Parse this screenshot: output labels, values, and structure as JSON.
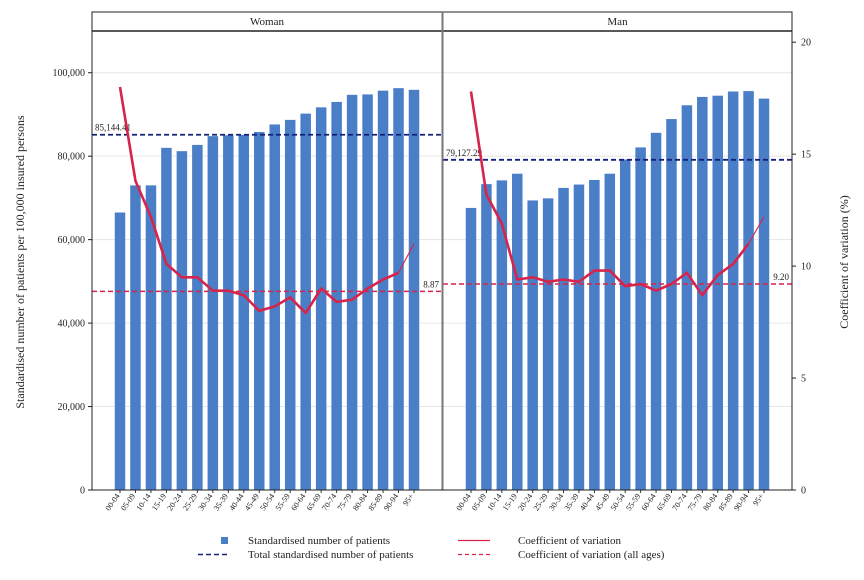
{
  "chart_data": {
    "type": "bar",
    "categories": [
      "00-04",
      "05-09",
      "10-14",
      "15-19",
      "20-24",
      "25-29",
      "30-34",
      "35-39",
      "40-44",
      "45-49",
      "50-54",
      "55-59",
      "60-64",
      "65-69",
      "70-74",
      "75-79",
      "80-84",
      "85-89",
      "90-94",
      "95+"
    ],
    "y_left_label": "Standardised number of patients per 100,000 insured persons",
    "y_right_label": "Coefficient of variation (%)",
    "y_left_range": [
      0,
      110000
    ],
    "y_left_ticks": [
      0,
      20000,
      40000,
      60000,
      80000,
      100000
    ],
    "y_left_tick_labels": [
      "0",
      "20,000",
      "40,000",
      "60,000",
      "80,000",
      "100,000"
    ],
    "y_right_range": [
      0,
      20.5
    ],
    "y_right_ticks": [
      0,
      5,
      10,
      15,
      20
    ],
    "y_right_tick_labels": [
      "0",
      "5",
      "10",
      "15",
      "20"
    ],
    "colors": {
      "bar": "#4a7ec6",
      "cv": "#d6244a",
      "total": "#15207a",
      "cv_all": "#d6244a"
    },
    "panels": [
      {
        "name": "Woman",
        "bars": [
          66500,
          73000,
          73000,
          82000,
          81200,
          82700,
          84800,
          85000,
          85100,
          85800,
          87600,
          88700,
          90200,
          91700,
          93000,
          94700,
          94800,
          95700,
          96300,
          95900
        ],
        "cv": [
          18.0,
          13.8,
          12.2,
          10.1,
          9.5,
          9.5,
          8.9,
          8.9,
          8.7,
          8.0,
          8.2,
          8.6,
          7.9,
          9.0,
          8.4,
          8.5,
          9.0,
          9.4,
          9.7,
          11.0
        ],
        "total": 85144.41,
        "total_label": "85,144.41",
        "cv_all": 8.87,
        "cv_all_label": "8.87"
      },
      {
        "name": "Man",
        "bars": [
          67600,
          73300,
          74200,
          75800,
          69400,
          69900,
          72400,
          73200,
          74300,
          75800,
          79200,
          82100,
          85600,
          88900,
          92200,
          94200,
          94500,
          95500,
          95600,
          93800
        ],
        "cv": [
          17.8,
          13.2,
          11.9,
          9.4,
          9.5,
          9.3,
          9.4,
          9.3,
          9.8,
          9.8,
          9.1,
          9.2,
          8.9,
          9.2,
          9.7,
          8.7,
          9.6,
          10.1,
          11.0,
          12.2
        ],
        "total": 79127.29,
        "total_label": "79,127.29",
        "cv_all": 9.2,
        "cv_all_label": "9.20"
      }
    ],
    "legend": {
      "placement": "bottom",
      "items": [
        "Standardised number of patients",
        "Coefficient of variation",
        "Total standardised number of patients",
        "Coefficient of variation (all ages)"
      ]
    },
    "grid": true
  }
}
